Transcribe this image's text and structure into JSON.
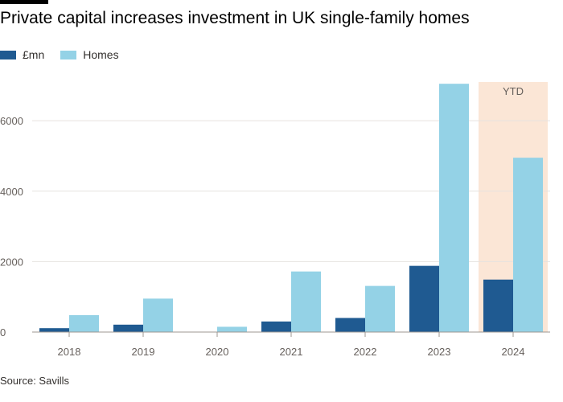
{
  "colors": {
    "series_pounds": "#1f5a91",
    "series_homes": "#94d2e6",
    "highlight": "#fbe6d6",
    "grid": "#e6e2df",
    "axis": "#9d9792"
  },
  "chart_data": {
    "type": "bar",
    "title": "Private capital increases investment in UK single-family homes",
    "categories": [
      "2018",
      "2019",
      "2020",
      "2021",
      "2022",
      "2023",
      "2024"
    ],
    "series": [
      {
        "name": "£mn",
        "values": [
          110,
          210,
          0,
          300,
          400,
          1880,
          1490
        ]
      },
      {
        "name": "Homes",
        "values": [
          480,
          950,
          150,
          1720,
          1310,
          7050,
          4950
        ]
      }
    ],
    "ylim": [
      0,
      7100
    ],
    "yticks": [
      0,
      2000,
      4000,
      6000
    ],
    "grid": true,
    "legend": "top-left",
    "highlight": {
      "category": "2024",
      "label": "YTD"
    },
    "source": "Source: Savills"
  }
}
